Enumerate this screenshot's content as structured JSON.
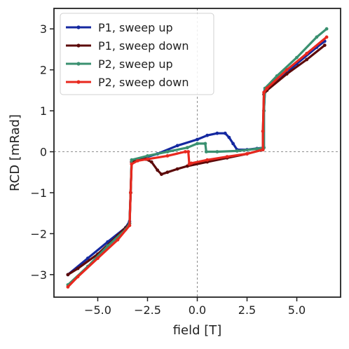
{
  "chart_data": {
    "type": "line",
    "xlabel": "field [T]",
    "ylabel": "RCD [mRad]",
    "xlim": [
      -7.2,
      7.2
    ],
    "ylim": [
      -3.55,
      3.5
    ],
    "xticks": [
      -5.0,
      -2.5,
      0.0,
      2.5,
      5.0
    ],
    "xtick_labels": [
      "−5.0",
      "−2.5",
      "0.0",
      "2.5",
      "5.0"
    ],
    "yticks": [
      -3,
      -2,
      -1,
      0,
      1,
      2,
      3
    ],
    "ytick_labels": [
      "−3",
      "−2",
      "−1",
      "0",
      "1",
      "2",
      "3"
    ],
    "reference_lines": {
      "x": 0,
      "y": 0,
      "style": "dashed",
      "color": "#808080"
    },
    "grid": false,
    "legend_position": "top-left",
    "series": [
      {
        "name": "P1, sweep up",
        "color": "#1428a0",
        "points": [
          [
            -6.5,
            -3.0
          ],
          [
            -5.5,
            -2.6
          ],
          [
            -4.5,
            -2.2
          ],
          [
            -3.6,
            -1.85
          ],
          [
            -3.4,
            -1.7
          ],
          [
            -3.35,
            -1.0
          ],
          [
            -3.3,
            -0.25
          ],
          [
            -3.0,
            -0.2
          ],
          [
            -2.0,
            -0.05
          ],
          [
            -1.0,
            0.15
          ],
          [
            0.0,
            0.3
          ],
          [
            0.5,
            0.4
          ],
          [
            1.0,
            0.45
          ],
          [
            1.4,
            0.45
          ],
          [
            1.6,
            0.35
          ],
          [
            1.8,
            0.2
          ],
          [
            2.0,
            0.05
          ],
          [
            2.5,
            0.05
          ],
          [
            3.0,
            0.08
          ],
          [
            3.35,
            0.1
          ],
          [
            3.35,
            1.0
          ],
          [
            3.4,
            1.5
          ],
          [
            4.0,
            1.75
          ],
          [
            5.0,
            2.15
          ],
          [
            6.0,
            2.55
          ],
          [
            6.4,
            2.7
          ]
        ]
      },
      {
        "name": "P1, sweep down",
        "color": "#5c0a0a",
        "points": [
          [
            6.4,
            2.6
          ],
          [
            5.5,
            2.25
          ],
          [
            4.5,
            1.9
          ],
          [
            3.5,
            1.5
          ],
          [
            3.35,
            1.4
          ],
          [
            3.3,
            0.5
          ],
          [
            3.3,
            0.05
          ],
          [
            2.5,
            -0.05
          ],
          [
            1.5,
            -0.15
          ],
          [
            0.5,
            -0.25
          ],
          [
            -0.5,
            -0.35
          ],
          [
            -1.0,
            -0.42
          ],
          [
            -1.5,
            -0.5
          ],
          [
            -1.8,
            -0.55
          ],
          [
            -2.0,
            -0.45
          ],
          [
            -2.3,
            -0.25
          ],
          [
            -2.6,
            -0.18
          ],
          [
            -3.0,
            -0.2
          ],
          [
            -3.3,
            -0.25
          ],
          [
            -3.35,
            -1.0
          ],
          [
            -3.4,
            -1.75
          ],
          [
            -4.0,
            -2.05
          ],
          [
            -5.0,
            -2.5
          ],
          [
            -6.0,
            -2.85
          ],
          [
            -6.5,
            -3.0
          ]
        ]
      },
      {
        "name": "P2, sweep up",
        "color": "#3a9070",
        "points": [
          [
            -6.5,
            -3.25
          ],
          [
            -5.5,
            -2.8
          ],
          [
            -4.5,
            -2.3
          ],
          [
            -3.6,
            -1.9
          ],
          [
            -3.4,
            -1.75
          ],
          [
            -3.35,
            -1.0
          ],
          [
            -3.3,
            -0.2
          ],
          [
            -2.5,
            -0.1
          ],
          [
            -1.5,
            0.0
          ],
          [
            -0.5,
            0.1
          ],
          [
            0.0,
            0.2
          ],
          [
            0.4,
            0.2
          ],
          [
            0.45,
            0.0
          ],
          [
            1.0,
            0.0
          ],
          [
            2.0,
            0.02
          ],
          [
            3.0,
            0.07
          ],
          [
            3.35,
            0.1
          ],
          [
            3.35,
            1.0
          ],
          [
            3.4,
            1.55
          ],
          [
            4.0,
            1.85
          ],
          [
            5.0,
            2.3
          ],
          [
            6.0,
            2.8
          ],
          [
            6.5,
            3.0
          ]
        ]
      },
      {
        "name": "P2, sweep down",
        "color": "#e8281e",
        "points": [
          [
            6.5,
            2.8
          ],
          [
            5.5,
            2.4
          ],
          [
            4.5,
            2.0
          ],
          [
            3.5,
            1.55
          ],
          [
            3.35,
            1.45
          ],
          [
            3.3,
            0.5
          ],
          [
            3.3,
            0.05
          ],
          [
            2.5,
            -0.05
          ],
          [
            1.5,
            -0.12
          ],
          [
            0.5,
            -0.2
          ],
          [
            -0.3,
            -0.28
          ],
          [
            -0.4,
            -0.3
          ],
          [
            -0.45,
            0.0
          ],
          [
            -0.6,
            0.0
          ],
          [
            -1.5,
            -0.1
          ],
          [
            -2.5,
            -0.18
          ],
          [
            -3.0,
            -0.22
          ],
          [
            -3.3,
            -0.3
          ],
          [
            -3.35,
            -1.0
          ],
          [
            -3.4,
            -1.8
          ],
          [
            -4.0,
            -2.15
          ],
          [
            -5.0,
            -2.6
          ],
          [
            -6.0,
            -3.05
          ],
          [
            -6.5,
            -3.3
          ]
        ]
      }
    ]
  }
}
